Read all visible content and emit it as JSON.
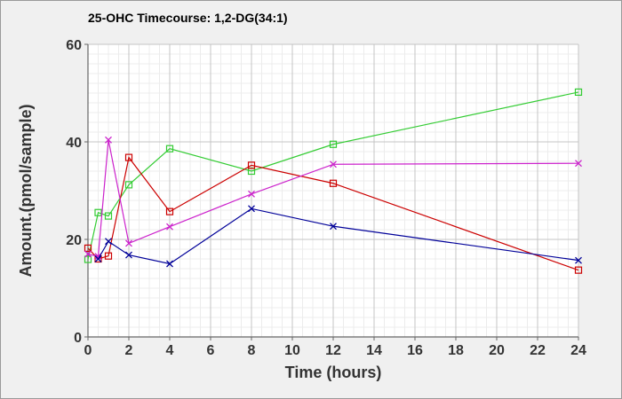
{
  "chart_data": {
    "type": "line",
    "title": "25-OHC Timecourse: 1,2-DG(34:1)",
    "xlabel": "Time (hours)",
    "ylabel": "Amount.(pmol/sample)",
    "xlim": [
      0,
      24
    ],
    "ylim": [
      0,
      60
    ],
    "xticks": [
      0,
      2,
      4,
      6,
      8,
      10,
      12,
      14,
      16,
      18,
      20,
      22,
      24
    ],
    "yticks": [
      0,
      20,
      40,
      60
    ],
    "grid": true,
    "legend": "none",
    "series": [
      {
        "color": "#33cc33",
        "marker": "square",
        "points": [
          [
            0,
            15.9
          ],
          [
            0.5,
            25.5
          ],
          [
            1,
            24.8
          ],
          [
            2,
            31.2
          ],
          [
            4,
            38.6
          ],
          [
            8,
            34.0
          ],
          [
            12,
            39.5
          ],
          [
            24,
            50.2
          ]
        ]
      },
      {
        "color": "#cc0000",
        "marker": "square",
        "points": [
          [
            0,
            18.2
          ],
          [
            0.5,
            16.0
          ],
          [
            1,
            16.6
          ],
          [
            2,
            36.8
          ],
          [
            4,
            25.7
          ],
          [
            8,
            35.2
          ],
          [
            12,
            31.5
          ],
          [
            24,
            13.7
          ]
        ]
      },
      {
        "color": "#cc22cc",
        "marker": "cross",
        "points": [
          [
            0,
            17.0
          ],
          [
            0.5,
            16.5
          ],
          [
            1,
            40.4
          ],
          [
            2,
            19.2
          ],
          [
            4,
            22.6
          ],
          [
            8,
            29.3
          ],
          [
            12,
            35.4
          ],
          [
            24,
            35.6
          ]
        ]
      },
      {
        "color": "#000099",
        "marker": "cross",
        "points": [
          [
            0.5,
            16.0
          ],
          [
            1,
            19.6
          ],
          [
            2,
            16.8
          ],
          [
            4,
            15.0
          ],
          [
            8,
            26.3
          ],
          [
            12,
            22.7
          ],
          [
            24,
            15.7
          ]
        ]
      }
    ]
  }
}
